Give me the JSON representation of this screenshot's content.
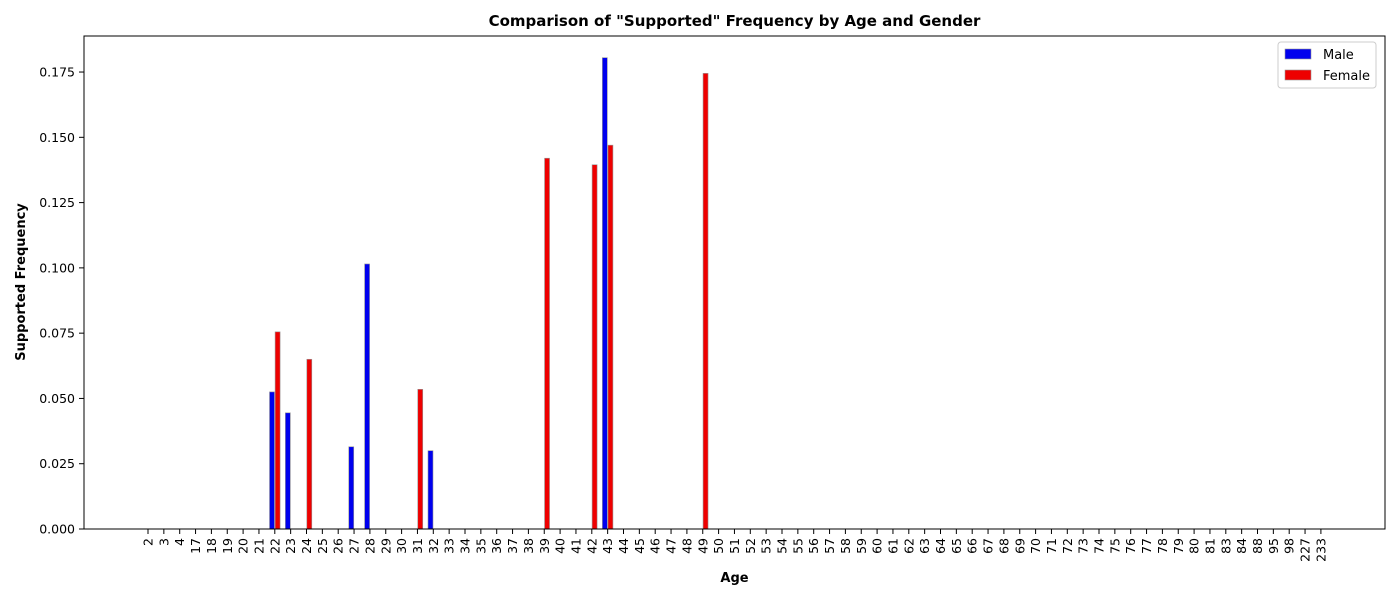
{
  "chart_data": {
    "type": "bar",
    "title": "Comparison of \"Supported\" Frequency by Age and Gender",
    "xlabel": "Age",
    "ylabel": "Supported Frequency",
    "ylim": [
      0,
      0.1888
    ],
    "yticks": [
      0.0,
      0.025,
      0.05,
      0.075,
      0.1,
      0.125,
      0.15,
      0.175
    ],
    "ytick_labels": [
      "0.000",
      "0.025",
      "0.050",
      "0.075",
      "0.100",
      "0.125",
      "0.150",
      "0.175"
    ],
    "grid": false,
    "legend_position": "top-right",
    "categories": [
      "2",
      "3",
      "4",
      "17",
      "18",
      "19",
      "20",
      "21",
      "22",
      "23",
      "24",
      "25",
      "26",
      "27",
      "28",
      "29",
      "30",
      "31",
      "32",
      "33",
      "34",
      "35",
      "36",
      "37",
      "38",
      "39",
      "40",
      "41",
      "42",
      "43",
      "44",
      "45",
      "46",
      "47",
      "48",
      "49",
      "50",
      "51",
      "52",
      "53",
      "54",
      "55",
      "56",
      "57",
      "58",
      "59",
      "60",
      "61",
      "62",
      "63",
      "64",
      "65",
      "66",
      "67",
      "68",
      "69",
      "70",
      "71",
      "72",
      "73",
      "74",
      "75",
      "76",
      "77",
      "78",
      "79",
      "80",
      "81",
      "83",
      "84",
      "88",
      "95",
      "98",
      "227",
      "233"
    ],
    "series": [
      {
        "name": "Male",
        "color": "#0000ee",
        "values": [
          0,
          0,
          0,
          0,
          0,
          0,
          0,
          0,
          0.0525,
          0.0445,
          0,
          0,
          0,
          0.0315,
          0.1015,
          0,
          0,
          0,
          0.03,
          0,
          0,
          0,
          0,
          0,
          0,
          0,
          0,
          0,
          0,
          0.1805,
          0,
          0,
          0,
          0,
          0,
          0,
          0,
          0,
          0,
          0,
          0,
          0,
          0,
          0,
          0,
          0,
          0,
          0,
          0,
          0,
          0,
          0,
          0,
          0,
          0,
          0,
          0,
          0,
          0,
          0,
          0,
          0,
          0,
          0,
          0,
          0,
          0,
          0,
          0,
          0,
          0,
          0,
          0,
          0,
          0
        ]
      },
      {
        "name": "Female",
        "color": "#ee0000",
        "values": [
          0,
          0,
          0,
          0,
          0,
          0,
          0,
          0,
          0.0755,
          0,
          0.065,
          0,
          0,
          0,
          0,
          0,
          0,
          0.0535,
          0,
          0,
          0,
          0,
          0,
          0,
          0,
          0.142,
          0,
          0,
          0.1395,
          0.147,
          0,
          0,
          0,
          0,
          0,
          0.1745,
          0,
          0,
          0,
          0,
          0,
          0,
          0,
          0,
          0,
          0,
          0,
          0,
          0,
          0,
          0,
          0,
          0,
          0,
          0,
          0,
          0,
          0,
          0,
          0,
          0,
          0,
          0,
          0,
          0,
          0,
          0,
          0,
          0,
          0,
          0,
          0,
          0,
          0,
          0
        ]
      }
    ]
  }
}
